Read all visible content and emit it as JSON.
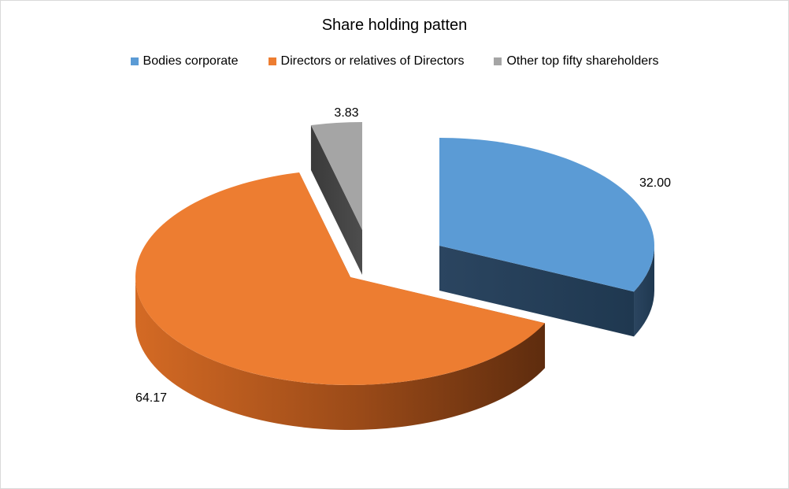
{
  "chart_data": {
    "type": "pie",
    "title": "Share holding patten",
    "legend_position": "top",
    "categories": [
      "Bodies corporate",
      "Directors or relatives of Directors",
      "Other top fifty shareholders"
    ],
    "values": [
      32.0,
      64.17,
      3.83
    ],
    "labels": [
      "32.00",
      "64.17",
      "3.83"
    ],
    "colors": [
      "#5b9bd5",
      "#ed7d31",
      "#a5a5a5"
    ],
    "exploded": true,
    "style": "3d"
  }
}
